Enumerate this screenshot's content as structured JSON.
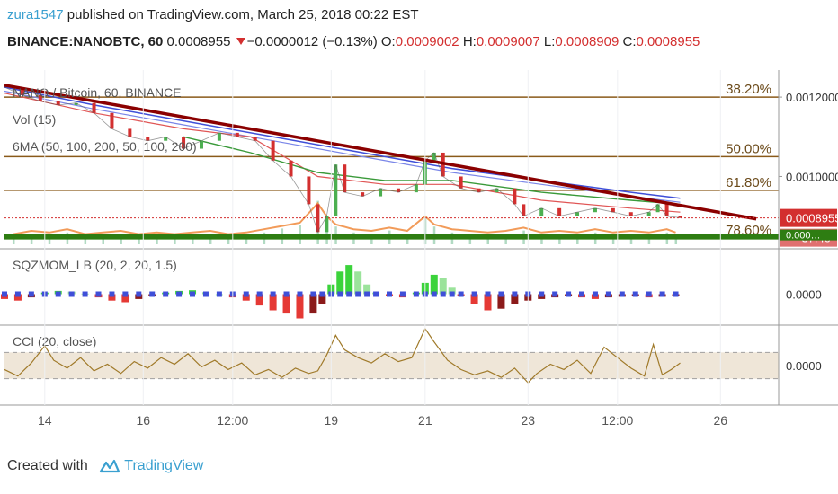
{
  "header": {
    "user": "zura1547",
    "published": " published on TradingView.com, March 25, 2018 00:22 EST"
  },
  "ticker": {
    "symbol": "BINANCE:NANOBTC, 60",
    "last": "0.0008955",
    "change": "−0.0000012 (−0.13%)",
    "o_label": "O:",
    "o": "0.0009002",
    "h_label": "H:",
    "h": "0.0009007",
    "l_label": "L:",
    "l": "0.0008909",
    "c_label": "C:",
    "c": "0.0008955"
  },
  "footer": {
    "created": "Created with",
    "brand": "TradingView"
  },
  "colors": {
    "accent": "#3aa0d0",
    "down": "#d32f2f",
    "up": "#4caf50",
    "fib": "#8a5a1a",
    "trend": "#8b0000",
    "ma_blue": "#3f4fd8",
    "ma_green": "#3a9a3a",
    "ma_red": "#e05555",
    "vol_orange": "#f08a3c",
    "squeeze_blue": "#3f4fd8",
    "cci": "#a07a2a",
    "band": "#efe6d8",
    "support": "#2e7d12"
  },
  "chart_data": [
    {
      "type": "line",
      "name": "price",
      "legend": [
        "NANO / Bitcoin, 60, BINANCE",
        "Vol (15)",
        "6MA (50, 100, 200, 50, 100, 200)"
      ],
      "x_ticks": [
        "14",
        "16",
        "12:00",
        "19",
        "21",
        "23",
        "12:00",
        "26"
      ],
      "x_tick_idx": [
        0.9,
        3.1,
        5.1,
        7.3,
        9.4,
        11.7,
        13.7,
        16.0
      ],
      "ylim": [
        0.00082,
        0.00125
      ],
      "y_ticks": [
        {
          "label": "0.0012000",
          "value": 0.0012
        },
        {
          "label": "0.0010000",
          "value": 0.001
        }
      ],
      "last_price_label": "0.0008955",
      "last_price": 0.0008955,
      "countdown": "37:40",
      "bottom_label": "0.000…",
      "fib_levels": [
        {
          "label": "38.20%",
          "value": 0.0012
        },
        {
          "label": "50.00%",
          "value": 0.00105
        },
        {
          "label": "61.80%",
          "value": 0.000965
        },
        {
          "label": "78.60%",
          "value": 0.000845
        }
      ],
      "support_level": 0.000848,
      "trendline": {
        "x0": 0,
        "y0": 0.00123,
        "x1": 16.8,
        "y1": 0.000893
      },
      "price": [
        [
          0.0,
          0.001225
        ],
        [
          0.4,
          0.001205
        ],
        [
          0.8,
          0.00119
        ],
        [
          1.2,
          0.00118
        ],
        [
          1.6,
          0.001185
        ],
        [
          2.0,
          0.00116
        ],
        [
          2.4,
          0.00112
        ],
        [
          2.8,
          0.0011
        ],
        [
          3.2,
          0.00109
        ],
        [
          3.6,
          0.0011
        ],
        [
          4.0,
          0.00107
        ],
        [
          4.4,
          0.00109
        ],
        [
          4.8,
          0.00111
        ],
        [
          5.2,
          0.0011
        ],
        [
          5.6,
          0.00109
        ],
        [
          6.0,
          0.00104
        ],
        [
          6.4,
          0.001
        ],
        [
          6.8,
          0.00093
        ],
        [
          7.0,
          0.00086
        ],
        [
          7.2,
          0.0009
        ],
        [
          7.4,
          0.00103
        ],
        [
          7.6,
          0.00096
        ],
        [
          8.0,
          0.00095
        ],
        [
          8.4,
          0.00097
        ],
        [
          8.8,
          0.00096
        ],
        [
          9.2,
          0.00098
        ],
        [
          9.4,
          0.00104
        ],
        [
          9.6,
          0.00106
        ],
        [
          9.8,
          0.001
        ],
        [
          10.2,
          0.00097
        ],
        [
          10.6,
          0.00096
        ],
        [
          11.0,
          0.00097
        ],
        [
          11.4,
          0.00093
        ],
        [
          11.6,
          0.0009
        ],
        [
          12.0,
          0.00092
        ],
        [
          12.4,
          0.0009
        ],
        [
          12.8,
          0.00091
        ],
        [
          13.2,
          0.00092
        ],
        [
          13.6,
          0.00091
        ],
        [
          14.0,
          0.0009
        ],
        [
          14.4,
          0.00091
        ],
        [
          14.6,
          0.00093
        ],
        [
          14.8,
          0.0009
        ],
        [
          15.1,
          0.000896
        ]
      ],
      "ma_blue": [
        [
          0.0,
          0.001225
        ],
        [
          2.0,
          0.00118
        ],
        [
          4.0,
          0.00114
        ],
        [
          6.0,
          0.0011
        ],
        [
          8.0,
          0.00106
        ],
        [
          10.0,
          0.00102
        ],
        [
          12.0,
          0.00099
        ],
        [
          14.0,
          0.00096
        ],
        [
          15.1,
          0.000945
        ]
      ],
      "ma_blue2": [
        [
          0.0,
          0.001215
        ],
        [
          2.0,
          0.00117
        ],
        [
          4.0,
          0.00113
        ],
        [
          6.0,
          0.00109
        ],
        [
          8.0,
          0.00105
        ],
        [
          10.0,
          0.00101
        ],
        [
          12.0,
          0.00098
        ],
        [
          14.0,
          0.00095
        ],
        [
          15.1,
          0.000935
        ]
      ],
      "ma_red": [
        [
          0.0,
          0.00121
        ],
        [
          2.0,
          0.00116
        ],
        [
          4.0,
          0.00112
        ],
        [
          5.5,
          0.0011
        ],
        [
          7.0,
          0.001
        ],
        [
          8.5,
          0.00098
        ],
        [
          10.0,
          0.00098
        ],
        [
          12.0,
          0.00094
        ],
        [
          14.0,
          0.00092
        ],
        [
          15.1,
          0.00091
        ]
      ],
      "ma_green": [
        [
          4.0,
          0.0011
        ],
        [
          5.5,
          0.00106
        ],
        [
          7.0,
          0.00101
        ],
        [
          8.5,
          0.00099
        ],
        [
          10.0,
          0.00099
        ],
        [
          12.0,
          0.00096
        ],
        [
          14.0,
          0.00094
        ],
        [
          15.1,
          0.00093
        ]
      ],
      "volume": [
        [
          0.2,
          3
        ],
        [
          0.6,
          5
        ],
        [
          1.0,
          4
        ],
        [
          1.4,
          6
        ],
        [
          1.8,
          3
        ],
        [
          2.2,
          4
        ],
        [
          2.6,
          5
        ],
        [
          3.0,
          3
        ],
        [
          3.4,
          4
        ],
        [
          3.8,
          3
        ],
        [
          4.2,
          4
        ],
        [
          4.6,
          5
        ],
        [
          5.0,
          3
        ],
        [
          5.4,
          4
        ],
        [
          5.8,
          6
        ],
        [
          6.2,
          8
        ],
        [
          6.6,
          10
        ],
        [
          7.0,
          22
        ],
        [
          7.2,
          14
        ],
        [
          7.4,
          9
        ],
        [
          7.8,
          6
        ],
        [
          8.2,
          5
        ],
        [
          8.6,
          7
        ],
        [
          9.0,
          5
        ],
        [
          9.4,
          14
        ],
        [
          9.6,
          9
        ],
        [
          10.0,
          6
        ],
        [
          10.4,
          5
        ],
        [
          10.8,
          4
        ],
        [
          11.2,
          5
        ],
        [
          11.6,
          7
        ],
        [
          12.0,
          4
        ],
        [
          12.4,
          5
        ],
        [
          12.8,
          4
        ],
        [
          13.2,
          6
        ],
        [
          13.6,
          4
        ],
        [
          14.0,
          5
        ],
        [
          14.4,
          4
        ],
        [
          14.8,
          6
        ],
        [
          15.0,
          4
        ]
      ]
    },
    {
      "type": "bar",
      "name": "squeeze",
      "legend": "SQZMOM_LB (20, 2, 20, 1.5)",
      "zero_label": "0.0000",
      "ylim": [
        -1,
        1
      ],
      "values": [
        [
          0.0,
          -0.15
        ],
        [
          0.3,
          -0.2
        ],
        [
          0.6,
          -0.1
        ],
        [
          0.9,
          0.05
        ],
        [
          1.2,
          0.1
        ],
        [
          1.5,
          0.08
        ],
        [
          1.8,
          0.02
        ],
        [
          2.1,
          -0.1
        ],
        [
          2.4,
          -0.2
        ],
        [
          2.7,
          -0.25
        ],
        [
          3.0,
          -0.15
        ],
        [
          3.3,
          -0.05
        ],
        [
          3.6,
          0.05
        ],
        [
          3.9,
          0.1
        ],
        [
          4.2,
          0.12
        ],
        [
          4.5,
          0.06
        ],
        [
          4.8,
          0.0
        ],
        [
          5.1,
          -0.1
        ],
        [
          5.4,
          -0.2
        ],
        [
          5.7,
          -0.35
        ],
        [
          6.0,
          -0.5
        ],
        [
          6.3,
          -0.6
        ],
        [
          6.6,
          -0.75
        ],
        [
          6.9,
          -0.6
        ],
        [
          7.1,
          -0.3
        ],
        [
          7.3,
          0.3
        ],
        [
          7.5,
          0.7
        ],
        [
          7.7,
          0.9
        ],
        [
          7.9,
          0.7
        ],
        [
          8.1,
          0.3
        ],
        [
          8.3,
          0.05
        ],
        [
          8.6,
          -0.05
        ],
        [
          8.9,
          -0.1
        ],
        [
          9.2,
          0.05
        ],
        [
          9.4,
          0.35
        ],
        [
          9.6,
          0.6
        ],
        [
          9.8,
          0.5
        ],
        [
          10.0,
          0.2
        ],
        [
          10.2,
          -0.05
        ],
        [
          10.5,
          -0.3
        ],
        [
          10.8,
          -0.5
        ],
        [
          11.1,
          -0.45
        ],
        [
          11.4,
          -0.3
        ],
        [
          11.7,
          -0.2
        ],
        [
          12.0,
          -0.15
        ],
        [
          12.3,
          -0.1
        ],
        [
          12.6,
          -0.05
        ],
        [
          12.9,
          -0.1
        ],
        [
          13.2,
          -0.15
        ],
        [
          13.5,
          -0.1
        ],
        [
          13.8,
          -0.08
        ],
        [
          14.1,
          -0.05
        ],
        [
          14.4,
          -0.1
        ],
        [
          14.7,
          -0.08
        ],
        [
          15.0,
          -0.05
        ]
      ]
    },
    {
      "type": "line",
      "name": "cci",
      "legend": "CCI (20, close)",
      "zero_label": "0.0000",
      "ylim": [
        -300,
        300
      ],
      "band": [
        -100,
        100
      ],
      "values": [
        [
          0.0,
          -30
        ],
        [
          0.3,
          -80
        ],
        [
          0.6,
          20
        ],
        [
          0.9,
          150
        ],
        [
          1.1,
          40
        ],
        [
          1.4,
          -20
        ],
        [
          1.7,
          60
        ],
        [
          2.0,
          -40
        ],
        [
          2.3,
          10
        ],
        [
          2.6,
          -60
        ],
        [
          2.9,
          30
        ],
        [
          3.2,
          -20
        ],
        [
          3.5,
          60
        ],
        [
          3.8,
          10
        ],
        [
          4.1,
          90
        ],
        [
          4.4,
          -10
        ],
        [
          4.7,
          40
        ],
        [
          5.0,
          -30
        ],
        [
          5.3,
          20
        ],
        [
          5.6,
          -70
        ],
        [
          5.9,
          -30
        ],
        [
          6.2,
          -90
        ],
        [
          6.5,
          -20
        ],
        [
          6.8,
          -60
        ],
        [
          7.0,
          -40
        ],
        [
          7.2,
          80
        ],
        [
          7.4,
          230
        ],
        [
          7.6,
          120
        ],
        [
          7.9,
          60
        ],
        [
          8.2,
          20
        ],
        [
          8.5,
          90
        ],
        [
          8.8,
          30
        ],
        [
          9.1,
          60
        ],
        [
          9.4,
          280
        ],
        [
          9.6,
          180
        ],
        [
          9.9,
          40
        ],
        [
          10.2,
          -30
        ],
        [
          10.5,
          -70
        ],
        [
          10.8,
          -40
        ],
        [
          11.1,
          -90
        ],
        [
          11.4,
          -20
        ],
        [
          11.7,
          -130
        ],
        [
          11.9,
          -60
        ],
        [
          12.2,
          10
        ],
        [
          12.5,
          -30
        ],
        [
          12.8,
          40
        ],
        [
          13.1,
          -60
        ],
        [
          13.4,
          140
        ],
        [
          13.7,
          60
        ],
        [
          14.0,
          -20
        ],
        [
          14.3,
          -80
        ],
        [
          14.5,
          160
        ],
        [
          14.7,
          -70
        ],
        [
          14.9,
          -30
        ],
        [
          15.1,
          20
        ]
      ]
    }
  ]
}
